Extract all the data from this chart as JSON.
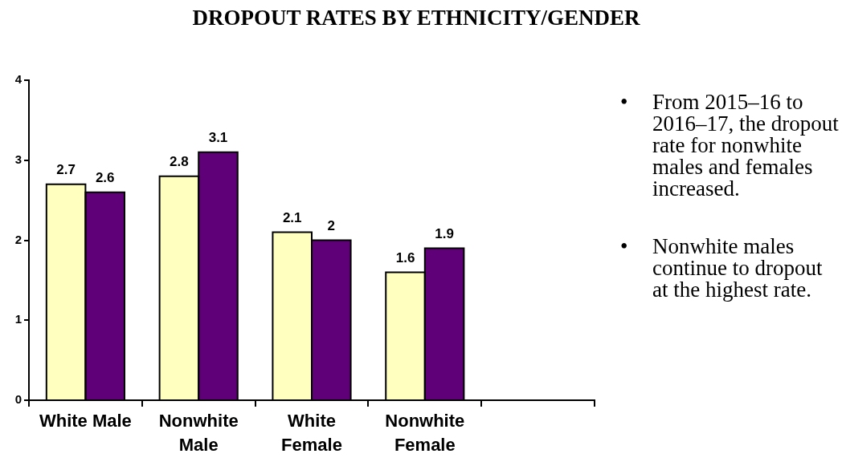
{
  "chart_data": {
    "type": "bar",
    "title": "DROPOUT RATES BY ETHNICITY/GENDER",
    "categories": [
      "White Male",
      "Nonwhite Male",
      "White Female",
      "Nonwhite Female",
      null
    ],
    "series": [
      {
        "color": "#ffffc0",
        "values": [
          2.7,
          2.8,
          2.1,
          1.6,
          null
        ]
      },
      {
        "color": "#5f0078",
        "values": [
          2.6,
          3.1,
          2,
          1.9,
          null
        ]
      }
    ],
    "ylim": [
      0,
      4
    ],
    "yticks": [
      0,
      1,
      2,
      3,
      4
    ],
    "data_labels": true,
    "annotations": [
      "• From 2015–16 to 2016–17, the dropout rate for nonwhite males and females increased.",
      "• Nonwhite males continue to dropout at the highest rate."
    ]
  }
}
